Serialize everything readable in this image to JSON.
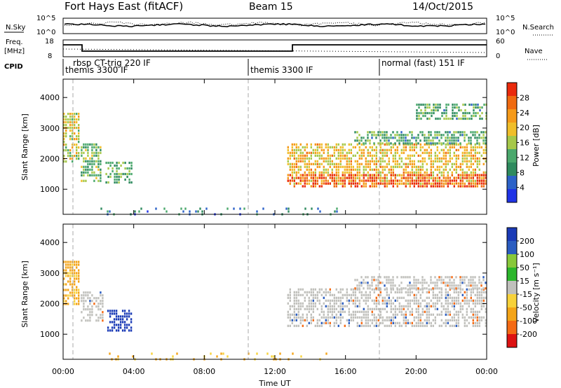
{
  "header": {
    "station": "Fort Hays East (fitACF)",
    "beam": "Beam 15",
    "date": "14/Oct/2015"
  },
  "noise_panel": {
    "left_label": "N.Sky",
    "right_label": "N.Search",
    "left_ticks": [
      "10^5",
      "10^0"
    ],
    "right_ticks": [
      "10^5",
      "10^0"
    ]
  },
  "freq_panel": {
    "left_label_1": "Freq.",
    "left_label_2": "[MHz]",
    "right_label": "Nave",
    "left_ticks": [
      "18",
      "8"
    ],
    "right_ticks": [
      "60",
      "0"
    ]
  },
  "cpid": {
    "label": "CPID",
    "segments": [
      {
        "name": "rbsp CT-trig 220 IF",
        "start_h": 0.75
      },
      {
        "name": "themis 3300 IF",
        "start_h": 0.15
      },
      {
        "name": "themis 3300 IF",
        "start_h": 10.4
      },
      {
        "name": "normal (fast) 151 IF",
        "start_h": 18.0
      }
    ]
  },
  "colors": {
    "power": [
      "#1f33e6",
      "#2c62c8",
      "#2e8a5e",
      "#4aa86c",
      "#a6c84a",
      "#f0be2a",
      "#f59a1a",
      "#f06a10",
      "#ea2a0c"
    ],
    "velocity": [
      "#dd1212",
      "#f56a14",
      "#f4a418",
      "#f7d23a",
      "#c0c0bc",
      "#2cb62c",
      "#88c83a",
      "#2a5cc0",
      "#1a3ab6"
    ]
  },
  "chart_data": [
    {
      "type": "heatmap",
      "quantity": "Power",
      "ylabel": "Slant Range [km]",
      "y_ticks": [
        1000,
        2000,
        3000,
        4000
      ],
      "ylim": [
        180,
        4600
      ],
      "colorbar_label": "Power [dB]",
      "colorbar_ticks": [
        4,
        8,
        12,
        16,
        20,
        24,
        28
      ],
      "colorbar_range": [
        0,
        32
      ],
      "regions": [
        {
          "t0": 0.0,
          "t1": 0.9,
          "r0": 1900,
          "r1": 3500,
          "value": 18
        },
        {
          "t0": 1.0,
          "t1": 2.1,
          "r0": 1300,
          "r1": 2500,
          "value": 14
        },
        {
          "t0": 2.4,
          "t1": 3.9,
          "r0": 1200,
          "r1": 1900,
          "value": 13
        },
        {
          "t0": 12.7,
          "t1": 24.0,
          "r0": 1200,
          "r1": 2500,
          "value": 20
        },
        {
          "t0": 12.7,
          "t1": 24.0,
          "r0": 1100,
          "r1": 1500,
          "value": 28
        },
        {
          "t0": 16.5,
          "t1": 24.0,
          "r0": 2500,
          "r1": 2900,
          "value": 12
        },
        {
          "t0": 20.0,
          "t1": 24.0,
          "r0": 3300,
          "r1": 3800,
          "value": 12
        },
        {
          "t0": 2.0,
          "t1": 15.5,
          "r0": 200,
          "r1": 400,
          "value": 8
        }
      ]
    },
    {
      "type": "heatmap",
      "quantity": "Velocity",
      "ylabel": "Slant Range [km]",
      "y_ticks": [
        1000,
        2000,
        3000,
        4000
      ],
      "ylim": [
        180,
        4600
      ],
      "colorbar_label": "Velocity [m s⁻¹]",
      "colorbar_ticks": [
        200,
        100,
        50,
        15,
        -15,
        -50,
        -100,
        -200
      ],
      "regions": [
        {
          "t0": 0.0,
          "t1": 0.9,
          "r0": 2000,
          "r1": 3400,
          "value": -50
        },
        {
          "t0": 1.0,
          "t1": 2.2,
          "r0": 1400,
          "r1": 2400,
          "value": 0
        },
        {
          "t0": 2.5,
          "t1": 3.9,
          "r0": 1100,
          "r1": 1800,
          "value": 220
        },
        {
          "t0": 12.7,
          "t1": 24.0,
          "r0": 1300,
          "r1": 2500,
          "value": 0
        },
        {
          "t0": 16.5,
          "t1": 24.0,
          "r0": 2500,
          "r1": 2900,
          "value": 0
        },
        {
          "t0": 2.0,
          "t1": 15.5,
          "r0": 200,
          "r1": 400,
          "value": -50
        }
      ]
    }
  ],
  "xaxis": {
    "label": "Time UT",
    "ticks": [
      "00:00",
      "04:00",
      "08:00",
      "12:00",
      "16:00",
      "20:00",
      "00:00"
    ]
  }
}
